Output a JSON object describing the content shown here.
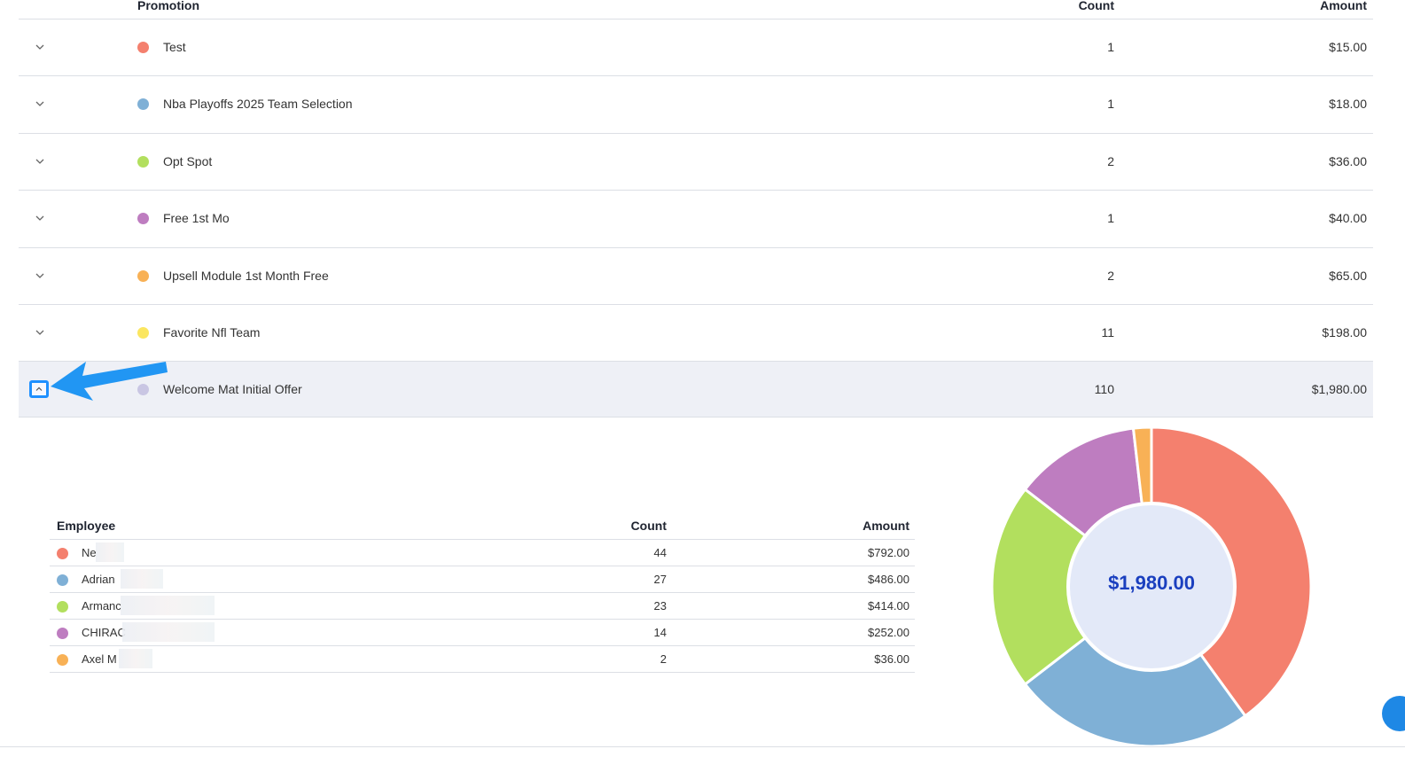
{
  "promotions_table": {
    "headers": {
      "promotion": "Promotion",
      "count": "Count",
      "amount": "Amount"
    },
    "rows": [
      {
        "name": "Test",
        "count": "1",
        "amount": "$15.00",
        "color": "#f4806e"
      },
      {
        "name": "Nba Playoffs 2025 Team Selection",
        "count": "1",
        "amount": "$18.00",
        "color": "#7fb0d6"
      },
      {
        "name": "Opt Spot",
        "count": "2",
        "amount": "$36.00",
        "color": "#b2df5e"
      },
      {
        "name": "Free 1st Mo",
        "count": "1",
        "amount": "$40.00",
        "color": "#be7dc0"
      },
      {
        "name": "Upsell Module 1st Month Free",
        "count": "2",
        "amount": "$65.00",
        "color": "#f8b156"
      },
      {
        "name": "Favorite Nfl Team",
        "count": "11",
        "amount": "$198.00",
        "color": "#fbe660"
      },
      {
        "name": "Welcome Mat Initial Offer",
        "count": "110",
        "amount": "$1,980.00",
        "color": "#c9c6e3",
        "expanded": true
      }
    ]
  },
  "employee_table": {
    "headers": {
      "employee": "Employee",
      "count": "Count",
      "amount": "Amount"
    },
    "rows": [
      {
        "name": "Ne",
        "count": "44",
        "amount": "$792.00",
        "color": "#f4806e"
      },
      {
        "name": "Adrian",
        "count": "27",
        "amount": "$486.00",
        "color": "#7fb0d6"
      },
      {
        "name": "Armanc",
        "count": "23",
        "amount": "$414.00",
        "color": "#b2df5e"
      },
      {
        "name": "CHIRAC",
        "count": "14",
        "amount": "$252.00",
        "color": "#be7dc0"
      },
      {
        "name": "Axel M",
        "count": "2",
        "amount": "$36.00",
        "color": "#f8b156"
      }
    ]
  },
  "chart_data": {
    "type": "pie",
    "center_label": "$1,980.00",
    "categories": [
      "Ne",
      "Adrian",
      "Armanc",
      "CHIRAC",
      "Axel M"
    ],
    "values": [
      792,
      486,
      414,
      252,
      36
    ],
    "colors": [
      "#f4806e",
      "#7fb0d6",
      "#b2df5e",
      "#be7dc0",
      "#f8b156"
    ]
  }
}
